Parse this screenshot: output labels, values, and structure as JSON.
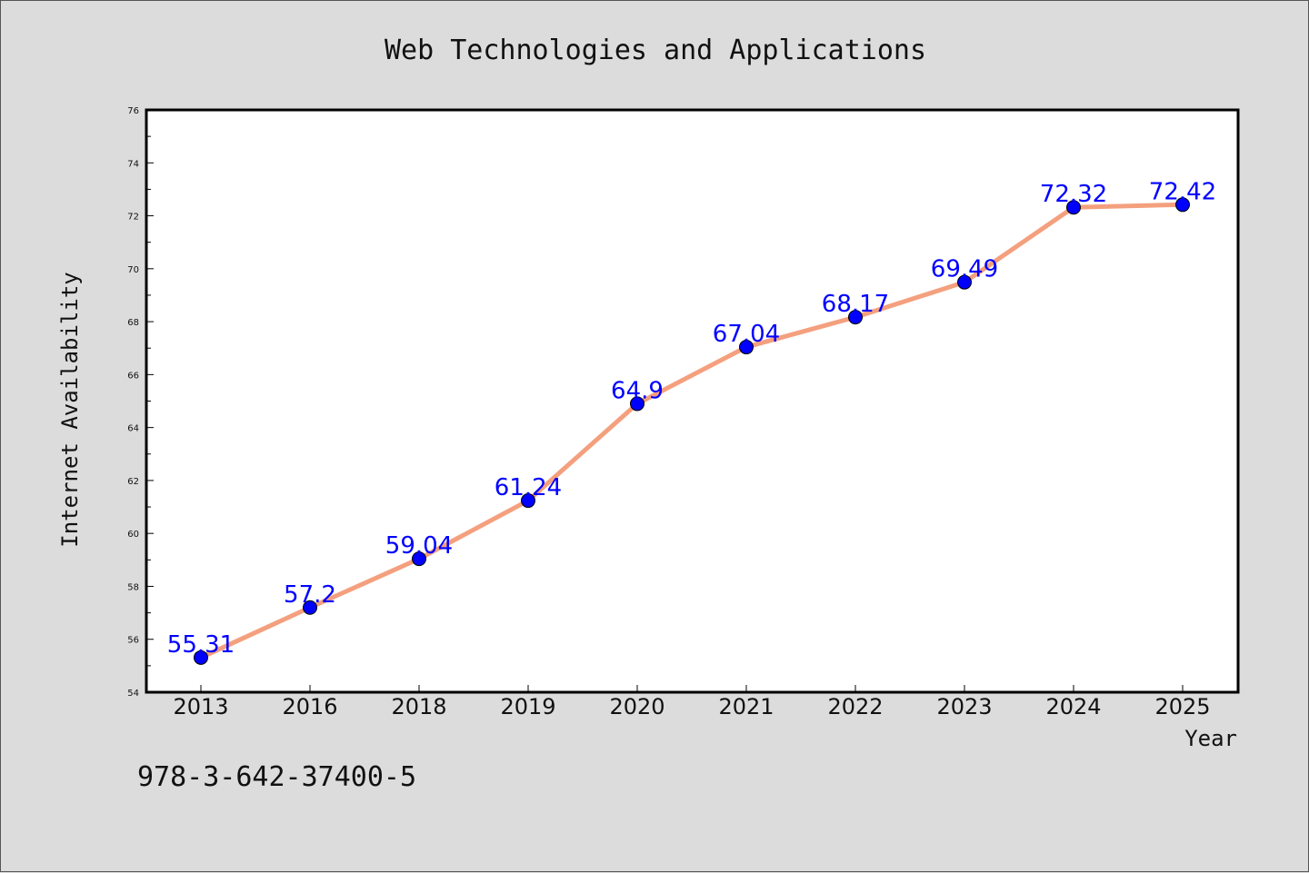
{
  "chart_data": {
    "type": "line",
    "title": "Web Technologies and Applications",
    "xlabel": "Year",
    "ylabel": "Internet Availability",
    "categories": [
      "2013",
      "2016",
      "2018",
      "2019",
      "2020",
      "2021",
      "2022",
      "2023",
      "2024",
      "2025"
    ],
    "series": [
      {
        "values": [
          55.31,
          57.2,
          59.04,
          61.24,
          64.9,
          67.04,
          68.17,
          69.49,
          72.32,
          72.42
        ],
        "labels": [
          "55.31",
          "57.2",
          "59.04",
          "61.24",
          "64.9",
          "67.04",
          "68.17",
          "69.49",
          "72.32",
          "72.42"
        ]
      }
    ],
    "ylim": [
      54,
      76
    ],
    "yticks": [
      "54",
      "56",
      "58",
      "60",
      "62",
      "64",
      "66",
      "68",
      "70",
      "72",
      "74",
      "76"
    ],
    "grid": false,
    "line_color": "#f4a07e",
    "marker_color": "#0000ff",
    "label_color": "#0000ff"
  },
  "footer_text": "978-3-642-37400-5"
}
